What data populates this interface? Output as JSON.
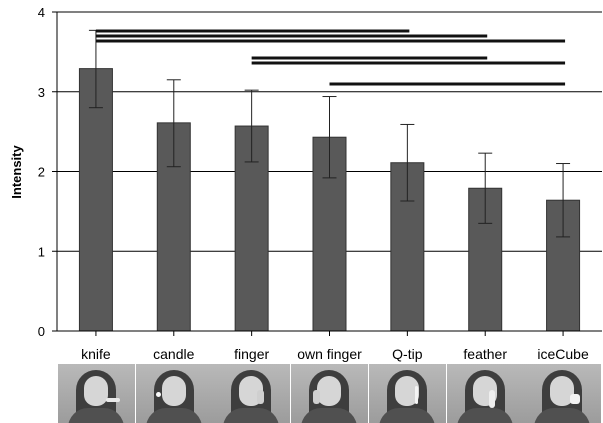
{
  "chart_data": {
    "type": "bar",
    "ylabel": "Intensity",
    "xlabel": "",
    "ylim": [
      0,
      4
    ],
    "yticks": [
      "0",
      "1",
      "2",
      "3",
      "4"
    ],
    "grid": "horizontal",
    "categories": [
      "knife",
      "candle",
      "finger",
      "own finger",
      "Q-tip",
      "feather",
      "iceCube"
    ],
    "values": [
      3.29,
      2.61,
      2.57,
      2.43,
      2.11,
      1.79,
      1.64
    ],
    "error_low": [
      2.8,
      2.06,
      2.12,
      1.92,
      1.63,
      1.35,
      1.18
    ],
    "error_high": [
      3.77,
      3.15,
      3.02,
      2.94,
      2.59,
      2.23,
      2.1
    ],
    "significance_bars": [
      {
        "from": "knife",
        "to": "Q-tip"
      },
      {
        "from": "knife",
        "to": "feather"
      },
      {
        "from": "knife",
        "to": "iceCube"
      },
      {
        "from": "finger",
        "to": "feather"
      },
      {
        "from": "finger",
        "to": "iceCube"
      },
      {
        "from": "own finger",
        "to": "iceCube"
      }
    ],
    "colors": {
      "bar": "#595959",
      "bar_edge": "#333333",
      "grid": "#000000",
      "axis": "#000000"
    }
  },
  "photos": [
    {
      "name": "knife-photo",
      "prop": "knife"
    },
    {
      "name": "candle-photo",
      "prop": "candle"
    },
    {
      "name": "finger-photo",
      "prop": "finger"
    },
    {
      "name": "own-finger-photo",
      "prop": "own finger"
    },
    {
      "name": "q-tip-photo",
      "prop": "Q-tip"
    },
    {
      "name": "feather-photo",
      "prop": "feather"
    },
    {
      "name": "icecube-photo",
      "prop": "iceCube"
    }
  ]
}
